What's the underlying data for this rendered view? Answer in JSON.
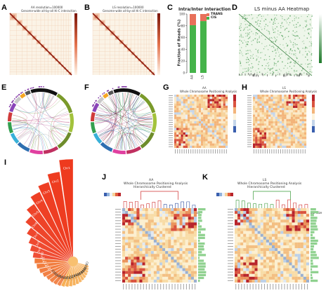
{
  "panels": {
    "A": {
      "label": "A",
      "title_line1": "AA resolution=100000",
      "title_line2": "Genome-wide all-by-all Hi-C interaction"
    },
    "B": {
      "label": "B",
      "title_line1": "LS resolution=100000",
      "title_line2": "Genome-wide all-by-all Hi-C interaction"
    },
    "C": {
      "label": "C",
      "title": "Intra/Inter Interaction",
      "ylabel": "Fraction of Reads (%)",
      "legend": [
        "TRANS",
        "CIS"
      ]
    },
    "D": {
      "label": "D",
      "title": "LS minus AA Heatmap"
    },
    "E": {
      "label": "E"
    },
    "F": {
      "label": "F"
    },
    "G": {
      "label": "G",
      "title_line1": "AA",
      "title_line2": "Whole Chromosome Positioning Analysis"
    },
    "H": {
      "label": "H",
      "title_line1": "LS",
      "title_line2": "Whole Chromosome Positioning Analysis"
    },
    "I": {
      "label": "I"
    },
    "J": {
      "label": "J",
      "title_line1": "AA",
      "title_line2": "Whole Chromosome Positioning Analysis",
      "title_line3": "Hierarchically Clustered",
      "side_label": "Bar Size"
    },
    "K": {
      "label": "K",
      "title_line1": "LS",
      "title_line2": "Whole Chromosome Positioning Analysis",
      "title_line3": "Hierarchically Clustered",
      "side_label": "Bar Size"
    }
  },
  "colors": {
    "hic_red": "#a0200f",
    "hic_bg": "#fbf3e6",
    "trans": "#e8705a",
    "cis": "#45b34a",
    "diff_green": "#2e8b3a",
    "heat_red": "#c0262c",
    "heat_blue": "#3a5fae",
    "cluster_red": "#d03030",
    "cluster_blue": "#2f4fa0",
    "cluster_green": "#3a9a3a",
    "rose_red": "#ee3a1e"
  },
  "chart_data": [
    {
      "type": "bar",
      "panel": "C",
      "categories": [
        "AA",
        "LS"
      ],
      "series": [
        {
          "name": "TRANS",
          "values": [
            19,
            12
          ]
        },
        {
          "name": "CIS",
          "values": [
            81,
            88
          ]
        }
      ],
      "title": "Intra/Inter Interaction",
      "xlabel": "",
      "ylabel": "Fraction of Reads (%)",
      "ylim": [
        0,
        100
      ],
      "yticks": [
        "0",
        "20",
        "40",
        "60",
        "80",
        "100"
      ]
    },
    {
      "type": "bar",
      "panel": "I",
      "categories": [
        "Chr1",
        "Chr2",
        "Chr3",
        "Chr4",
        "Chr5",
        "Chr6",
        "Chr7",
        "Chr8",
        "Chr9",
        "Chr10",
        "Chr11",
        "Chr12",
        "Chr13",
        "Chr14",
        "Chr15",
        "Chr16",
        "Chr17",
        "Chr18",
        "Chr19",
        "Chr20",
        "Chr21",
        "Chr22",
        "Chr23",
        "Chr24",
        "Chr25",
        "Chr26",
        "Chr27",
        "Chr28",
        "Chr29",
        "Chr30"
      ],
      "values": [
        100,
        88,
        80,
        74,
        66,
        58,
        50,
        44,
        40,
        36,
        34,
        32,
        30,
        28,
        26,
        25,
        24,
        23,
        22,
        21,
        20,
        19,
        18,
        17,
        16,
        15,
        14,
        13,
        12,
        11
      ],
      "title": ""
    }
  ]
}
